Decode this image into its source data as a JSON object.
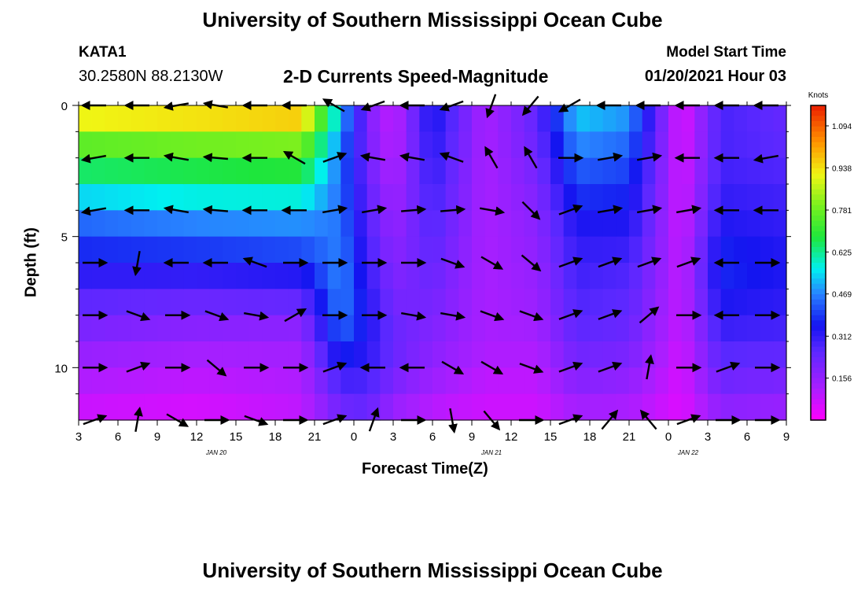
{
  "header": {
    "title": "University of Southern Mississippi Ocean Cube",
    "station": "KATA1",
    "latlon": "30.2580N 88.2130W",
    "subtitle": "2-D Currents Speed-Magnitude",
    "model_start_label": "Model Start Time",
    "model_start_value": "01/20/2021 Hour 03"
  },
  "footer": {
    "title": "University of Southern Mississippi Ocean Cube"
  },
  "chart_data": {
    "type": "heatmap",
    "xlabel": "Forecast Time(Z)",
    "ylabel": "Depth (ft)",
    "x_tick_labels": [
      "3",
      "6",
      "9",
      "12",
      "15",
      "18",
      "21",
      "0",
      "3",
      "6",
      "9",
      "12",
      "15",
      "18",
      "21",
      "0",
      "3",
      "6",
      "9"
    ],
    "date_labels": [
      "JAN 20",
      "JAN 21",
      "JAN 22"
    ],
    "y_ticks": [
      0,
      5,
      10
    ],
    "ylim": [
      0,
      12
    ],
    "xlim_hours": [
      0,
      54
    ],
    "colorbar": {
      "title": "Knots",
      "ticks": [
        "1.094",
        "0.938",
        "0.781",
        "0.625",
        "0.469",
        "0.312",
        "0.156"
      ],
      "range": [
        0,
        1.17
      ]
    },
    "depth_bands_ft": [
      0,
      0.5,
      1,
      1.5,
      2,
      2.5,
      3,
      3.5,
      4,
      4.5,
      5,
      5.5,
      6,
      6.5,
      7,
      7.5,
      8,
      8.5,
      9,
      9.5,
      10,
      10.5,
      11,
      11.5,
      12
    ],
    "speed_knots_profiles": [
      {
        "hour": 0,
        "speeds": [
          1.0,
          0.82,
          0.7,
          0.6,
          0.48,
          0.4,
          0.35,
          0.28,
          0.22,
          0.18,
          0.12,
          0.1,
          0.05
        ]
      },
      {
        "hour": 9,
        "speeds": [
          1.02,
          0.85,
          0.72,
          0.62,
          0.52,
          0.42,
          0.36,
          0.26,
          0.2,
          0.15,
          0.1,
          0.08,
          0.04
        ]
      },
      {
        "hour": 17,
        "speeds": [
          1.06,
          0.86,
          0.74,
          0.63,
          0.52,
          0.44,
          0.38,
          0.28,
          0.2,
          0.14,
          0.12,
          0.1,
          0.08
        ]
      },
      {
        "hour": 20,
        "speeds": [
          0.55,
          0.48,
          0.45,
          0.44,
          0.45,
          0.46,
          0.47,
          0.48,
          0.46,
          0.42,
          0.32,
          0.25,
          0.2
        ]
      },
      {
        "hour": 22,
        "speeds": [
          0.2,
          0.2,
          0.22,
          0.24,
          0.26,
          0.28,
          0.3,
          0.32,
          0.34,
          0.34,
          0.3,
          0.26,
          0.22
        ]
      },
      {
        "hour": 24,
        "speeds": [
          0.08,
          0.08,
          0.1,
          0.12,
          0.14,
          0.16,
          0.18,
          0.2,
          0.22,
          0.24,
          0.22,
          0.18,
          0.12
        ]
      },
      {
        "hour": 27,
        "speeds": [
          0.36,
          0.34,
          0.32,
          0.3,
          0.28,
          0.26,
          0.24,
          0.22,
          0.2,
          0.18,
          0.16,
          0.12,
          0.08
        ]
      },
      {
        "hour": 31,
        "speeds": [
          0.12,
          0.12,
          0.12,
          0.12,
          0.12,
          0.12,
          0.12,
          0.12,
          0.12,
          0.12,
          0.1,
          0.08,
          0.06
        ]
      },
      {
        "hour": 35,
        "speeds": [
          0.25,
          0.24,
          0.22,
          0.2,
          0.18,
          0.17,
          0.16,
          0.15,
          0.14,
          0.12,
          0.1,
          0.08,
          0.06
        ]
      },
      {
        "hour": 38,
        "speeds": [
          0.55,
          0.5,
          0.45,
          0.4,
          0.36,
          0.32,
          0.3,
          0.28,
          0.26,
          0.24,
          0.2,
          0.16,
          0.1
        ]
      },
      {
        "hour": 42,
        "speeds": [
          0.5,
          0.46,
          0.42,
          0.38,
          0.35,
          0.32,
          0.28,
          0.26,
          0.24,
          0.22,
          0.18,
          0.14,
          0.1
        ]
      },
      {
        "hour": 46,
        "speeds": [
          0.04,
          0.04,
          0.05,
          0.06,
          0.06,
          0.07,
          0.08,
          0.08,
          0.08,
          0.07,
          0.06,
          0.05,
          0.04
        ]
      },
      {
        "hour": 49,
        "speeds": [
          0.28,
          0.28,
          0.28,
          0.3,
          0.32,
          0.35,
          0.38,
          0.36,
          0.32,
          0.28,
          0.24,
          0.2,
          0.14
        ]
      },
      {
        "hour": 54,
        "speeds": [
          0.24,
          0.24,
          0.26,
          0.28,
          0.3,
          0.32,
          0.34,
          0.33,
          0.3,
          0.27,
          0.22,
          0.18,
          0.12
        ]
      }
    ],
    "vector_rows_ft": [
      0,
      2,
      4,
      6,
      8,
      10,
      12
    ],
    "vector_cols_hours": [
      1.2,
      4.5,
      7.5,
      10.5,
      13.5,
      16.5,
      19.5,
      22.5,
      25.5,
      28.5,
      31.5,
      34.5,
      37.5,
      40.5,
      43.5,
      46.5,
      49.5,
      52.5
    ],
    "vectors_dir_deg": [
      [
        180,
        180,
        190,
        170,
        180,
        180,
        150,
        200,
        180,
        200,
        250,
        230,
        210,
        180,
        180,
        180,
        180,
        180
      ],
      [
        190,
        180,
        170,
        175,
        180,
        150,
        20,
        170,
        170,
        160,
        120,
        120,
        0,
        10,
        10,
        180,
        180,
        190
      ],
      [
        190,
        180,
        170,
        175,
        180,
        180,
        10,
        10,
        5,
        5,
        350,
        315,
        20,
        10,
        10,
        10,
        180,
        180
      ],
      [
        0,
        260,
        180,
        180,
        160,
        0,
        0,
        0,
        0,
        340,
        330,
        320,
        20,
        20,
        20,
        20,
        180,
        0
      ],
      [
        0,
        340,
        0,
        340,
        350,
        30,
        0,
        0,
        350,
        350,
        340,
        340,
        20,
        20,
        40,
        0,
        180,
        0
      ],
      [
        0,
        20,
        0,
        320,
        0,
        0,
        20,
        180,
        180,
        330,
        330,
        340,
        20,
        20,
        80,
        0,
        20,
        0
      ],
      [
        20,
        80,
        330,
        0,
        340,
        0,
        20,
        70,
        0,
        280,
        310,
        0,
        20,
        50,
        130,
        20,
        0,
        0
      ]
    ]
  }
}
